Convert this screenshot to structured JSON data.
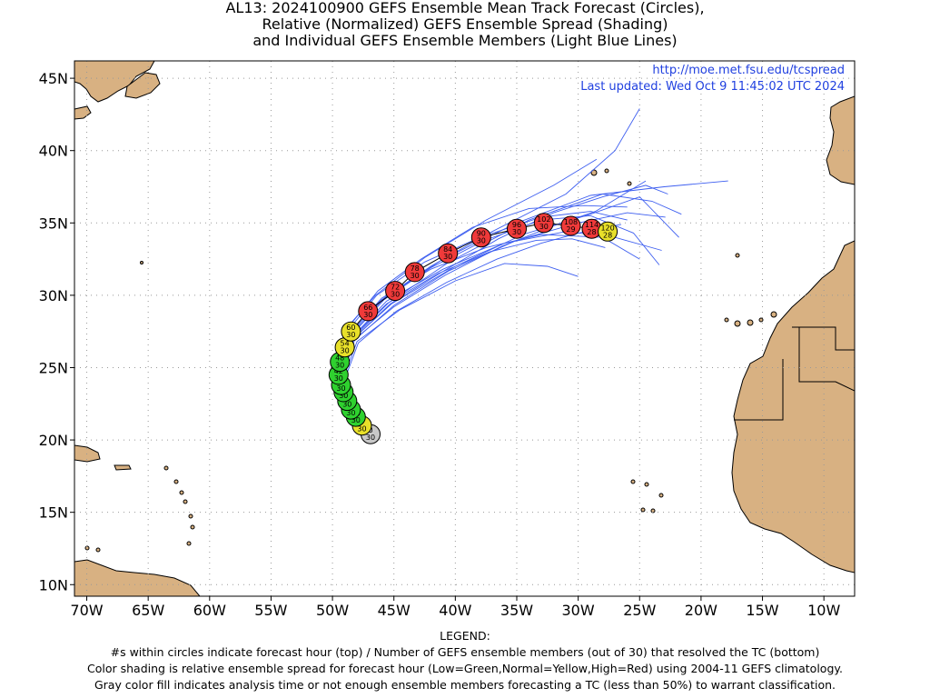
{
  "title": {
    "lines": [
      "AL13: 2024100900 GEFS Ensemble Mean Track Forecast (Circles),",
      "Relative (Normalized) GEFS Ensemble Spread (Shading)",
      "and Individual GEFS Ensemble Members (Light Blue Lines)"
    ]
  },
  "source": {
    "url": "http://moe.met.fsu.edu/tcspread",
    "updated": "Last updated: Wed Oct 9 11:45:02 UTC 2024"
  },
  "legend": {
    "heading": "LEGEND:",
    "lines": [
      "#s within circles indicate forecast hour (top) / Number of GEFS ensemble members (out of 30) that resolved the TC (bottom)",
      "Color shading is relative ensemble spread for forecast hour (Low=Green,Normal=Yellow,High=Red) using 2004-11 GEFS climatology.",
      "Gray color fill indicates analysis time or not enough ensemble members forecasting a TC (less than 50%) to warrant classification."
    ]
  },
  "colors": {
    "land": "#d8b182",
    "ocean": "#ffffff",
    "member_tracks": "#3d5ef0",
    "low": "#2fd12f",
    "normal": "#e8e02a",
    "high": "#f03a3a",
    "gray": "#c8c8c8"
  },
  "chart_data": {
    "type": "map",
    "xlim": [
      -71,
      -7.5
    ],
    "ylim": [
      9.2,
      46.2
    ],
    "x_ticks": [
      {
        "value": -70,
        "label": "70W"
      },
      {
        "value": -65,
        "label": "65W"
      },
      {
        "value": -60,
        "label": "60W"
      },
      {
        "value": -55,
        "label": "55W"
      },
      {
        "value": -50,
        "label": "50W"
      },
      {
        "value": -45,
        "label": "45W"
      },
      {
        "value": -40,
        "label": "40W"
      },
      {
        "value": -35,
        "label": "35W"
      },
      {
        "value": -30,
        "label": "30W"
      },
      {
        "value": -25,
        "label": "25W"
      },
      {
        "value": -20,
        "label": "20W"
      },
      {
        "value": -15,
        "label": "15W"
      },
      {
        "value": -10,
        "label": "10W"
      }
    ],
    "y_ticks": [
      {
        "value": 10,
        "label": "10N"
      },
      {
        "value": 15,
        "label": "15N"
      },
      {
        "value": 20,
        "label": "20N"
      },
      {
        "value": 25,
        "label": "25N"
      },
      {
        "value": 30,
        "label": "30N"
      },
      {
        "value": 35,
        "label": "35N"
      },
      {
        "value": 40,
        "label": "40N"
      },
      {
        "value": 45,
        "label": "45N"
      }
    ],
    "grid": true,
    "mean_track": [
      {
        "hour": "0",
        "members": "30",
        "lon": -46.9,
        "lat": 20.4,
        "spread": "gray"
      },
      {
        "hour": "6",
        "members": "30",
        "lon": -47.6,
        "lat": 21.0,
        "spread": "normal"
      },
      {
        "hour": "12",
        "members": "30",
        "lon": -48.1,
        "lat": 21.6,
        "spread": "low"
      },
      {
        "hour": "18",
        "members": "30",
        "lon": -48.5,
        "lat": 22.1,
        "spread": "low"
      },
      {
        "hour": "24",
        "members": "30",
        "lon": -48.8,
        "lat": 22.7,
        "spread": "low"
      },
      {
        "hour": "30",
        "members": "30",
        "lon": -49.1,
        "lat": 23.3,
        "spread": "low"
      },
      {
        "hour": "36",
        "members": "30",
        "lon": -49.3,
        "lat": 23.8,
        "spread": "low"
      },
      {
        "hour": "42",
        "members": "30",
        "lon": -49.5,
        "lat": 24.5,
        "spread": "low"
      },
      {
        "hour": "48",
        "members": "30",
        "lon": -49.4,
        "lat": 25.4,
        "spread": "low"
      },
      {
        "hour": "54",
        "members": "30",
        "lon": -49.0,
        "lat": 26.4,
        "spread": "normal"
      },
      {
        "hour": "60",
        "members": "30",
        "lon": -48.5,
        "lat": 27.5,
        "spread": "normal"
      },
      {
        "hour": "66",
        "members": "30",
        "lon": -47.1,
        "lat": 28.9,
        "spread": "high"
      },
      {
        "hour": "72",
        "members": "30",
        "lon": -44.9,
        "lat": 30.3,
        "spread": "high"
      },
      {
        "hour": "78",
        "members": "30",
        "lon": -43.3,
        "lat": 31.6,
        "spread": "high"
      },
      {
        "hour": "84",
        "members": "30",
        "lon": -40.6,
        "lat": 32.9,
        "spread": "high"
      },
      {
        "hour": "90",
        "members": "30",
        "lon": -37.9,
        "lat": 34.0,
        "spread": "high"
      },
      {
        "hour": "96",
        "members": "30",
        "lon": -35.0,
        "lat": 34.6,
        "spread": "high"
      },
      {
        "hour": "102",
        "members": "30",
        "lon": -32.8,
        "lat": 35.0,
        "spread": "high"
      },
      {
        "hour": "108",
        "members": "29",
        "lon": -30.6,
        "lat": 34.8,
        "spread": "high"
      },
      {
        "hour": "114",
        "members": "28",
        "lon": -28.9,
        "lat": 34.6,
        "spread": "high"
      },
      {
        "hour": "120",
        "members": "28",
        "lon": -27.6,
        "lat": 34.4,
        "spread": "normal"
      }
    ],
    "member_tracks": [
      [
        [
          -46.9,
          20.4
        ],
        [
          -48.3,
          22.4
        ],
        [
          -49.6,
          24.6
        ],
        [
          -48.7,
          27.3
        ],
        [
          -46.0,
          29.7
        ],
        [
          -42.0,
          32.0
        ],
        [
          -37.0,
          34.4
        ],
        [
          -31.0,
          37.0
        ],
        [
          -27.0,
          40.0
        ],
        [
          -25.0,
          42.9
        ]
      ],
      [
        [
          -46.9,
          20.4
        ],
        [
          -48.4,
          22.4
        ],
        [
          -49.8,
          24.8
        ],
        [
          -49.0,
          27.6
        ],
        [
          -46.5,
          30.0
        ],
        [
          -42.5,
          32.6
        ],
        [
          -37.5,
          35.2
        ],
        [
          -32.0,
          37.6
        ],
        [
          -28.5,
          39.4
        ]
      ],
      [
        [
          -46.9,
          20.4
        ],
        [
          -48.2,
          22.3
        ],
        [
          -49.5,
          24.5
        ],
        [
          -48.6,
          27.2
        ],
        [
          -45.8,
          29.8
        ],
        [
          -41.0,
          32.5
        ],
        [
          -35.0,
          35.0
        ],
        [
          -29.0,
          36.9
        ],
        [
          -23.0,
          37.5
        ],
        [
          -17.8,
          37.9
        ]
      ],
      [
        [
          -46.9,
          20.4
        ],
        [
          -48.2,
          22.2
        ],
        [
          -49.4,
          24.4
        ],
        [
          -48.4,
          27.0
        ],
        [
          -45.4,
          29.5
        ],
        [
          -40.5,
          32.3
        ],
        [
          -34.0,
          35.2
        ],
        [
          -28.0,
          37.0
        ],
        [
          -24.0,
          36.5
        ],
        [
          -21.6,
          35.6
        ]
      ],
      [
        [
          -46.9,
          20.4
        ],
        [
          -48.1,
          22.2
        ],
        [
          -49.3,
          24.4
        ],
        [
          -48.3,
          27.0
        ],
        [
          -45.2,
          29.4
        ],
        [
          -40.0,
          32.0
        ],
        [
          -34.5,
          34.2
        ],
        [
          -29.0,
          35.6
        ],
        [
          -25.0,
          36.8
        ],
        [
          -21.8,
          34.0
        ]
      ],
      [
        [
          -46.9,
          20.4
        ],
        [
          -48.0,
          22.2
        ],
        [
          -49.2,
          24.3
        ],
        [
          -48.2,
          26.9
        ],
        [
          -45.0,
          29.3
        ],
        [
          -40.5,
          31.7
        ],
        [
          -35.0,
          33.8
        ],
        [
          -30.0,
          35.0
        ],
        [
          -26.0,
          35.7
        ],
        [
          -22.9,
          35.4
        ]
      ],
      [
        [
          -46.9,
          20.4
        ],
        [
          -48.1,
          22.2
        ],
        [
          -49.3,
          24.3
        ],
        [
          -48.4,
          27.1
        ],
        [
          -45.6,
          29.6
        ],
        [
          -41.0,
          31.8
        ],
        [
          -36.0,
          33.6
        ],
        [
          -31.0,
          34.4
        ],
        [
          -27.0,
          34.0
        ],
        [
          -23.2,
          33.1
        ]
      ],
      [
        [
          -46.9,
          20.4
        ],
        [
          -48.0,
          22.1
        ],
        [
          -49.1,
          24.3
        ],
        [
          -48.0,
          26.8
        ],
        [
          -44.5,
          29.0
        ],
        [
          -40.0,
          31.0
        ],
        [
          -36.0,
          32.2
        ],
        [
          -32.5,
          32.0
        ],
        [
          -30.0,
          31.3
        ]
      ],
      [
        [
          -46.9,
          20.4
        ],
        [
          -48.2,
          22.3
        ],
        [
          -49.4,
          24.6
        ],
        [
          -48.6,
          27.3
        ],
        [
          -46.0,
          29.8
        ],
        [
          -42.0,
          31.8
        ],
        [
          -37.5,
          33.3
        ],
        [
          -33.0,
          34.2
        ],
        [
          -28.0,
          34.0
        ],
        [
          -25.0,
          32.5
        ]
      ],
      [
        [
          -46.9,
          20.4
        ],
        [
          -48.1,
          22.2
        ],
        [
          -49.2,
          24.3
        ],
        [
          -48.3,
          26.9
        ],
        [
          -45.0,
          29.2
        ],
        [
          -40.8,
          31.4
        ],
        [
          -36.2,
          33.4
        ],
        [
          -32.0,
          34.8
        ],
        [
          -28.6,
          35.8
        ],
        [
          -24.5,
          37.9
        ]
      ],
      [
        [
          -46.9,
          20.4
        ],
        [
          -48.3,
          22.3
        ],
        [
          -49.5,
          24.7
        ],
        [
          -48.8,
          27.5
        ],
        [
          -46.4,
          30.0
        ],
        [
          -42.5,
          32.3
        ],
        [
          -38.0,
          34.0
        ],
        [
          -33.0,
          35.4
        ],
        [
          -29.0,
          35.8
        ],
        [
          -26.0,
          35.2
        ]
      ],
      [
        [
          -46.9,
          20.4
        ],
        [
          -48.0,
          22.1
        ],
        [
          -49.0,
          24.2
        ],
        [
          -47.9,
          26.7
        ],
        [
          -44.8,
          28.9
        ],
        [
          -40.7,
          30.9
        ],
        [
          -36.6,
          32.5
        ],
        [
          -33.0,
          33.6
        ],
        [
          -29.5,
          34.4
        ],
        [
          -26.5,
          34.9
        ]
      ],
      [
        [
          -46.9,
          20.4
        ],
        [
          -48.2,
          22.4
        ],
        [
          -49.5,
          24.8
        ],
        [
          -48.9,
          27.6
        ],
        [
          -46.3,
          30.3
        ],
        [
          -42.8,
          32.5
        ],
        [
          -38.6,
          34.7
        ],
        [
          -34.0,
          36.0
        ],
        [
          -29.5,
          36.2
        ],
        [
          -26.0,
          36.1
        ]
      ],
      [
        [
          -46.9,
          20.4
        ],
        [
          -48.1,
          22.3
        ],
        [
          -49.3,
          24.5
        ],
        [
          -48.4,
          27.1
        ],
        [
          -45.6,
          29.4
        ],
        [
          -41.4,
          31.5
        ],
        [
          -37.2,
          33.0
        ],
        [
          -33.4,
          33.8
        ],
        [
          -30.5,
          33.9
        ],
        [
          -27.8,
          33.3
        ]
      ],
      [
        [
          -46.9,
          20.4
        ],
        [
          -48.2,
          22.3
        ],
        [
          -49.4,
          24.5
        ],
        [
          -48.5,
          27.2
        ],
        [
          -45.8,
          29.7
        ],
        [
          -42.0,
          31.9
        ],
        [
          -37.6,
          33.8
        ],
        [
          -33.0,
          35.2
        ],
        [
          -29.0,
          35.5
        ],
        [
          -25.5,
          34.3
        ],
        [
          -23.4,
          32.1
        ]
      ],
      [
        [
          -46.9,
          20.4
        ],
        [
          -48.1,
          22.2
        ],
        [
          -49.2,
          24.4
        ],
        [
          -48.3,
          27.0
        ],
        [
          -45.3,
          29.4
        ],
        [
          -41.1,
          31.6
        ],
        [
          -36.5,
          33.9
        ],
        [
          -32.0,
          35.7
        ],
        [
          -28.0,
          36.8
        ],
        [
          -24.5,
          37.6
        ],
        [
          -22.7,
          37.0
        ]
      ]
    ],
    "annotations": [
      "http://moe.met.fsu.edu/tcspread",
      "Last updated: Wed Oct 9 11:45:02 UTC 2024"
    ]
  }
}
